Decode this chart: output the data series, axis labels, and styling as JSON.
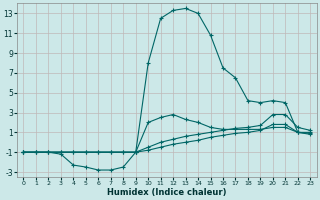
{
  "xlabel": "Humidex (Indice chaleur)",
  "bg_color": "#cce8e8",
  "grid_color": "#c8dede",
  "line_color": "#006666",
  "xlim": [
    -0.5,
    23.5
  ],
  "ylim": [
    -3.5,
    14.0
  ],
  "xticks": [
    0,
    1,
    2,
    3,
    4,
    5,
    6,
    7,
    8,
    9,
    10,
    11,
    12,
    13,
    14,
    15,
    16,
    17,
    18,
    19,
    20,
    21,
    22,
    23
  ],
  "yticks": [
    -3,
    -1,
    1,
    3,
    5,
    7,
    9,
    11,
    13
  ],
  "curve1_x": [
    0,
    1,
    2,
    3,
    4,
    5,
    6,
    7,
    8,
    9,
    10,
    11,
    12,
    13,
    14,
    15,
    16,
    17,
    18,
    19,
    20,
    21,
    22,
    23
  ],
  "curve1_y": [
    -1,
    -1,
    -1,
    -1.2,
    -2.3,
    -2.5,
    -2.8,
    -2.8,
    -2.5,
    -1,
    8,
    12.5,
    13.3,
    13.5,
    13,
    10.8,
    7.5,
    6.5,
    4.2,
    4,
    4.2,
    4,
    1,
    1
  ],
  "curve2_x": [
    0,
    1,
    2,
    3,
    4,
    5,
    6,
    7,
    8,
    9,
    10,
    11,
    12,
    13,
    14,
    15,
    16,
    17,
    18,
    19,
    20,
    21,
    22,
    23
  ],
  "curve2_y": [
    -1,
    -1,
    -1,
    -1,
    -1,
    -1,
    -1,
    -1,
    -1,
    -1,
    -0.5,
    0,
    0.3,
    0.6,
    0.8,
    1.0,
    1.2,
    1.4,
    1.5,
    1.7,
    2.8,
    2.8,
    1.5,
    1.2
  ],
  "curve3_x": [
    0,
    1,
    2,
    3,
    4,
    5,
    6,
    7,
    8,
    9,
    10,
    11,
    12,
    13,
    14,
    15,
    16,
    17,
    18,
    19,
    20,
    21,
    22,
    23
  ],
  "curve3_y": [
    -1,
    -1,
    -1,
    -1,
    -1,
    -1,
    -1,
    -1,
    -1,
    -1,
    -0.8,
    -0.5,
    -0.2,
    0,
    0.2,
    0.5,
    0.7,
    0.9,
    1.0,
    1.2,
    1.8,
    1.8,
    1.0,
    0.9
  ],
  "curve4_x": [
    0,
    9,
    10,
    11,
    12,
    13,
    14,
    15,
    16,
    17,
    18,
    19,
    20,
    21,
    22,
    23
  ],
  "curve4_y": [
    -1,
    -1,
    2,
    2.5,
    2.8,
    2.3,
    2,
    1.5,
    1.3,
    1.3,
    1.3,
    1.3,
    1.5,
    1.5,
    1.0,
    0.8
  ]
}
